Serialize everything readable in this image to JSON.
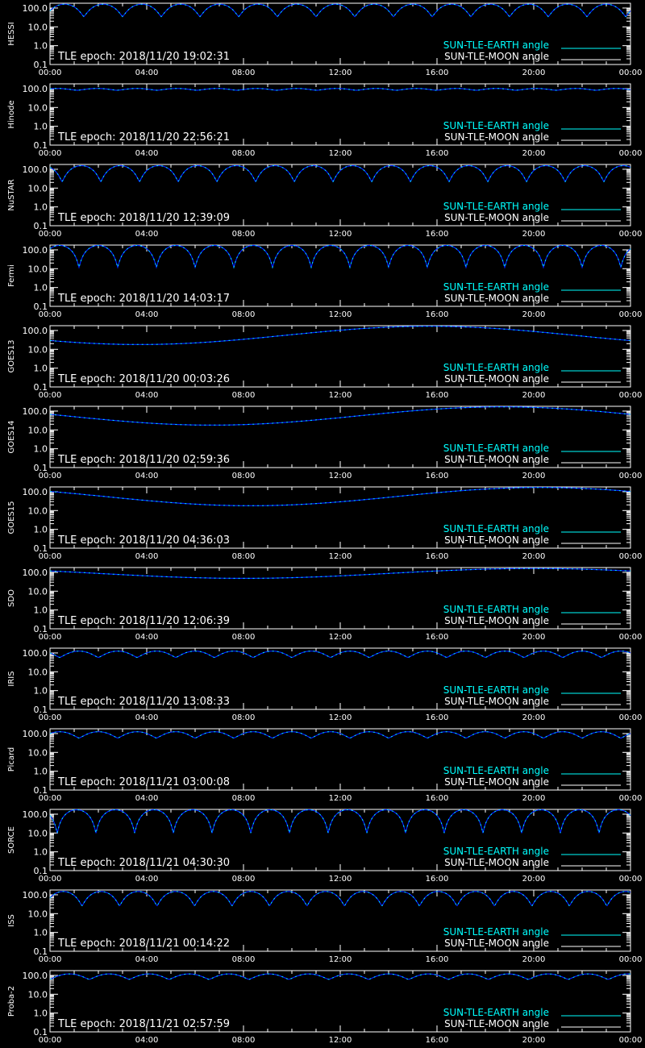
{
  "colors": {
    "background": "#000000",
    "axis": "#ffffff",
    "earth_angle": "#00ffff",
    "moon_angle": "#ffffff",
    "curve_dark": "#0022ff"
  },
  "x_tick_labels": [
    "00:00",
    "04:00",
    "08:00",
    "12:00",
    "16:00",
    "20:00",
    "00:00"
  ],
  "y_tick_labels": [
    "100.0",
    "10.0",
    "1.0",
    "0.1"
  ],
  "legend": {
    "earth": "SUN-TLE-EARTH angle",
    "moon": "SUN-TLE-MOON angle"
  },
  "chart_data": [
    {
      "type": "line",
      "satellite": "HESSI",
      "tle_epoch": "TLE epoch: 2018/11/20 19:02:31",
      "x_range_hours": [
        0,
        24
      ],
      "y_scale": "log",
      "ylim": [
        0.1,
        180
      ],
      "series": [
        {
          "name": "SUN-TLE-EARTH angle",
          "model": "orbital",
          "max": 160,
          "min": 35,
          "period_hours": 1.6,
          "phase_hours": 0.6
        }
      ]
    },
    {
      "type": "line",
      "satellite": "Hinode",
      "tle_epoch": "TLE epoch: 2018/11/20 22:56:21",
      "x_range_hours": [
        0,
        24
      ],
      "y_scale": "log",
      "ylim": [
        0.1,
        180
      ],
      "series": [
        {
          "name": "SUN-TLE-EARTH angle",
          "model": "orbital",
          "max": 102,
          "min": 82,
          "period_hours": 1.65,
          "phase_hours": 0.3
        }
      ]
    },
    {
      "type": "line",
      "satellite": "NuSTAR",
      "tle_epoch": "TLE epoch: 2018/11/20 12:39:09",
      "x_range_hours": [
        0,
        24
      ],
      "y_scale": "log",
      "ylim": [
        0.1,
        180
      ],
      "series": [
        {
          "name": "SUN-TLE-EARTH angle",
          "model": "orbital",
          "max": 155,
          "min": 22,
          "period_hours": 1.6,
          "phase_hours": 1.3
        }
      ]
    },
    {
      "type": "line",
      "satellite": "Fermi",
      "tle_epoch": "TLE epoch: 2018/11/20 14:03:17",
      "x_range_hours": [
        0,
        24
      ],
      "y_scale": "log",
      "ylim": [
        0.1,
        180
      ],
      "series": [
        {
          "name": "SUN-TLE-EARTH angle",
          "model": "orbital",
          "max": 172,
          "min": 12,
          "period_hours": 1.6,
          "phase_hours": 0.4
        }
      ]
    },
    {
      "type": "line",
      "satellite": "GOES13",
      "tle_epoch": "TLE epoch: 2018/11/20 00:03:26",
      "x_range_hours": [
        0,
        24
      ],
      "y_scale": "log",
      "ylim": [
        0.1,
        180
      ],
      "series": [
        {
          "name": "SUN-TLE-EARTH angle",
          "model": "daily",
          "max": 168,
          "min": 18,
          "min_hour": 3.7
        }
      ]
    },
    {
      "type": "line",
      "satellite": "GOES14",
      "tle_epoch": "TLE epoch: 2018/11/20 02:59:36",
      "x_range_hours": [
        0,
        24
      ],
      "y_scale": "log",
      "ylim": [
        0.1,
        180
      ],
      "series": [
        {
          "name": "SUN-TLE-EARTH angle",
          "model": "daily",
          "max": 168,
          "min": 18,
          "min_hour": 6.7
        }
      ]
    },
    {
      "type": "line",
      "satellite": "GOES15",
      "tle_epoch": "TLE epoch: 2018/11/20 04:36:03",
      "x_range_hours": [
        0,
        24
      ],
      "y_scale": "log",
      "ylim": [
        0.1,
        180
      ],
      "series": [
        {
          "name": "SUN-TLE-EARTH angle",
          "model": "daily",
          "max": 168,
          "min": 18,
          "min_hour": 8.3
        }
      ]
    },
    {
      "type": "line",
      "satellite": "SDO",
      "tle_epoch": "TLE epoch: 2018/11/20 12:06:39",
      "x_range_hours": [
        0,
        24
      ],
      "y_scale": "log",
      "ylim": [
        0.1,
        180
      ],
      "series": [
        {
          "name": "SUN-TLE-EARTH angle",
          "model": "daily",
          "max": 160,
          "min": 48,
          "min_hour": 8.0
        }
      ]
    },
    {
      "type": "line",
      "satellite": "IRIS",
      "tle_epoch": "TLE epoch: 2018/11/20 13:08:33",
      "x_range_hours": [
        0,
        24
      ],
      "y_scale": "log",
      "ylim": [
        0.1,
        180
      ],
      "series": [
        {
          "name": "SUN-TLE-EARTH angle",
          "model": "orbital",
          "max": 125,
          "min": 58,
          "period_hours": 1.6,
          "phase_hours": 1.2
        }
      ]
    },
    {
      "type": "line",
      "satellite": "Picard",
      "tle_epoch": "TLE epoch: 2018/11/21 03:00:08",
      "x_range_hours": [
        0,
        24
      ],
      "y_scale": "log",
      "ylim": [
        0.1,
        180
      ],
      "series": [
        {
          "name": "SUN-TLE-EARTH angle",
          "model": "orbital",
          "max": 125,
          "min": 58,
          "period_hours": 1.6,
          "phase_hours": 0.4
        }
      ]
    },
    {
      "type": "line",
      "satellite": "SORCE",
      "tle_epoch": "TLE epoch: 2018/11/21 04:30:30",
      "x_range_hours": [
        0,
        24
      ],
      "y_scale": "log",
      "ylim": [
        0.1,
        180
      ],
      "series": [
        {
          "name": "SUN-TLE-EARTH angle",
          "model": "orbital",
          "max": 172,
          "min": 10,
          "period_hours": 1.6,
          "phase_hours": 1.1
        }
      ]
    },
    {
      "type": "line",
      "satellite": "ISS",
      "tle_epoch": "TLE epoch: 2018/11/21 00:14:22",
      "x_range_hours": [
        0,
        24
      ],
      "y_scale": "log",
      "ylim": [
        0.1,
        180
      ],
      "series": [
        {
          "name": "SUN-TLE-EARTH angle",
          "model": "orbital",
          "max": 150,
          "min": 26,
          "period_hours": 1.55,
          "phase_hours": 0.55
        }
      ]
    },
    {
      "type": "line",
      "satellite": "Proba-2",
      "tle_epoch": "TLE epoch: 2018/11/21 02:57:59",
      "x_range_hours": [
        0,
        24
      ],
      "y_scale": "log",
      "ylim": [
        0.1,
        180
      ],
      "series": [
        {
          "name": "SUN-TLE-EARTH angle",
          "model": "orbital",
          "max": 120,
          "min": 62,
          "period_hours": 1.65,
          "phase_hours": 0.8
        }
      ]
    }
  ]
}
